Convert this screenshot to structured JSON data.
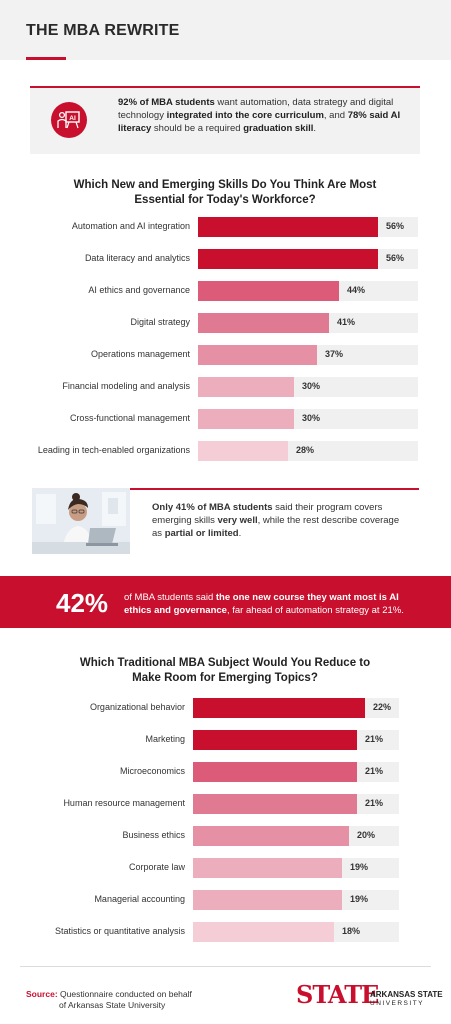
{
  "title": "THE MBA REWRITE",
  "callout1": {
    "icon": "ai-presentation-icon",
    "icon_label": "AI",
    "part1": "92% of MBA students",
    "part2": " want automation, data strategy and digital technology ",
    "part3": "integrated into the core curriculum",
    "part4": ", and ",
    "part5": "78% said AI literacy",
    "part6": " should be a required ",
    "part7": "graduation skill",
    "part8": "."
  },
  "chart1": {
    "title_line1": "Which New and Emerging Skills Do You Think Are Most",
    "title_line2": "Essential for Today's Workforce?"
  },
  "callout2": {
    "image": "student-on-laptop-photo",
    "part1": "Only 41% of MBA students",
    "part2": " said their program covers emerging skills ",
    "part3": "very well",
    "part4": ", while the rest describe coverage as ",
    "part5": "partial or limited",
    "part6": "."
  },
  "band": {
    "stat": "42%",
    "part1": "of MBA students said ",
    "part2": "the one new course they want most is AI ethics and governance",
    "part3": ", far ahead of automation strategy at 21%."
  },
  "chart2": {
    "title_line1": "Which Traditional MBA Subject Would You Reduce to",
    "title_line2": "Make Room for Emerging Topics?"
  },
  "source": {
    "label": "Source:",
    "line1": "Questionnaire conducted on behalf",
    "line2": "of Arkansas State University"
  },
  "logo": {
    "wordmark": "STATE",
    "name": "ARKANSAS STATE",
    "sub": "UNIVERSITY"
  },
  "colors": {
    "accent": "#c8102e",
    "bar_shades": [
      "#c8102e",
      "#c8102e",
      "#dc5b78",
      "#e07a92",
      "#e690a5",
      "#ecaebd",
      "#ecaebd",
      "#f5cdd6"
    ],
    "row_bg": "#f0f0f0"
  },
  "chart_data": [
    {
      "type": "bar",
      "orientation": "horizontal",
      "title": "Which New and Emerging Skills Do You Think Are Most Essential for Today's Workforce?",
      "categories": [
        "Automation and AI integration",
        "Data literacy and analytics",
        "AI ethics and governance",
        "Digital strategy",
        "Operations management",
        "Financial modeling and analysis",
        "Cross-functional management",
        "Leading in tech-enabled organizations"
      ],
      "values": [
        56,
        56,
        44,
        41,
        37,
        30,
        30,
        28
      ],
      "labels": [
        "56%",
        "56%",
        "44%",
        "41%",
        "37%",
        "30%",
        "30%",
        "28%"
      ],
      "xlim": [
        0,
        58
      ]
    },
    {
      "type": "bar",
      "orientation": "horizontal",
      "title": "Which Traditional MBA Subject Would You Reduce to Make Room for Emerging Topics?",
      "categories": [
        "Organizational behavior",
        "Marketing",
        "Microeconomics",
        "Human resource management",
        "Business ethics",
        "Corporate law",
        "Managerial accounting",
        "Statistics or quantitative analysis"
      ],
      "values": [
        22,
        21,
        21,
        21,
        20,
        19,
        19,
        18
      ],
      "labels": [
        "22%",
        "21%",
        "21%",
        "21%",
        "20%",
        "19%",
        "19%",
        "18%"
      ],
      "xlim": [
        0,
        22
      ]
    }
  ]
}
